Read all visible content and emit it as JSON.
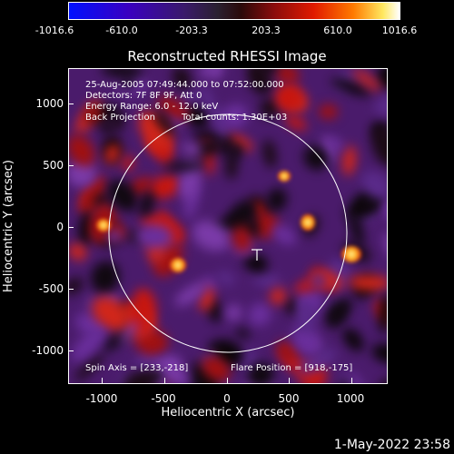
{
  "colorbar": {
    "ticks": [
      "-1016.6",
      "-610.0",
      "-203.3",
      "203.3",
      "610.0",
      "1016.6"
    ]
  },
  "title": "Reconstructed RHESSI Image",
  "info": {
    "time_range": "25-Aug-2005 07:49:44.000 to 07:52:00.000",
    "detectors": "Detectors: 7F 8F 9F, Att 0",
    "energy_range": "Energy Range: 6.0 - 12.0 keV",
    "method": "Back Projection",
    "total_counts": "Total counts: 1.30E+03",
    "spin_axis": "Spin Axis = [233,-218]",
    "flare_position": "Flare Position = [918,-175]"
  },
  "axes": {
    "xlabel": "Heliocentric X (arcsec)",
    "ylabel": "Heliocentric Y (arcsec)",
    "xticks": [
      "-1000",
      "-500",
      "0",
      "500",
      "1000"
    ],
    "yticks": [
      "1000",
      "500",
      "0",
      "-500",
      "-1000"
    ]
  },
  "timestamp": "1-May-2022 23:58",
  "colors": {
    "background": "#000000",
    "image_base": "#4a1b6b",
    "limb_circle": "#ffffff"
  }
}
